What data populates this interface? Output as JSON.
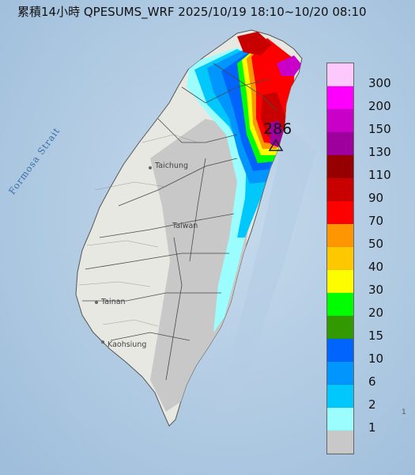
{
  "header": {
    "title": "累積14小時 QPESUMS_WRF 2025/10/19 18:10~10/20 08:10"
  },
  "map": {
    "strait_label": "Formosa Strait",
    "cities": {
      "taichung": "Taichung",
      "taiwan": "Taiwan",
      "tainan": "Tainan",
      "kaohsiung": "Kaohsiung"
    },
    "max_marker_value": "286",
    "edge_label": "1"
  },
  "legend": {
    "items": [
      {
        "label": "300",
        "color": "#fdc9fd"
      },
      {
        "label": "200",
        "color": "#fd00fd"
      },
      {
        "label": "150",
        "color": "#c800c8"
      },
      {
        "label": "130",
        "color": "#9e009e"
      },
      {
        "label": "110",
        "color": "#960000"
      },
      {
        "label": "90",
        "color": "#c80000"
      },
      {
        "label": "70",
        "color": "#fd0000"
      },
      {
        "label": "50",
        "color": "#fd9600"
      },
      {
        "label": "40",
        "color": "#fdc800"
      },
      {
        "label": "30",
        "color": "#fdfd00"
      },
      {
        "label": "20",
        "color": "#00fd00"
      },
      {
        "label": "15",
        "color": "#339900"
      },
      {
        "label": "10",
        "color": "#0064fd"
      },
      {
        "label": "6",
        "color": "#0096fd"
      },
      {
        "label": "2",
        "color": "#00c8fd"
      },
      {
        "label": "1",
        "color": "#9bfdfd"
      },
      {
        "label": "",
        "color": "#c8c8c8"
      }
    ]
  }
}
